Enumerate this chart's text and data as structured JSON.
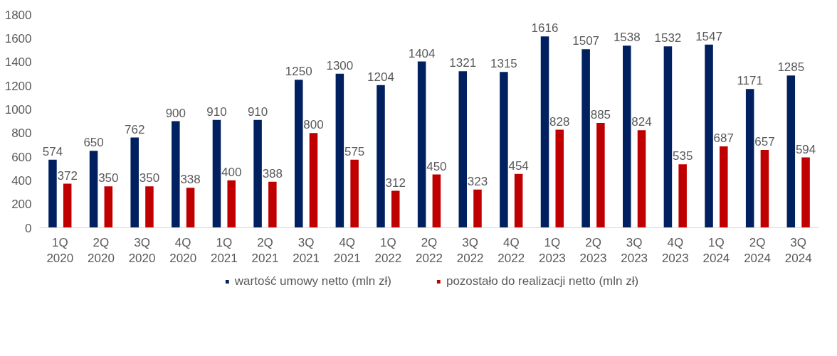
{
  "chart_data": {
    "type": "bar",
    "categories": [
      "1Q\n2020",
      "2Q\n2020",
      "3Q\n2020",
      "4Q\n2020",
      "1Q\n2021",
      "2Q\n2021",
      "3Q\n2021",
      "4Q\n2021",
      "1Q\n2022",
      "2Q\n2022",
      "3Q\n2022",
      "4Q\n2022",
      "1Q\n2023",
      "2Q\n2023",
      "3Q\n2023",
      "4Q\n2023",
      "1Q\n2024",
      "2Q\n2024",
      "3Q\n2024"
    ],
    "series": [
      {
        "name": "wartość umowy netto (mln zł)",
        "color": "#002060",
        "values": [
          574,
          650,
          762,
          900,
          910,
          910,
          1250,
          1300,
          1204,
          1404,
          1321,
          1315,
          1616,
          1507,
          1538,
          1532,
          1547,
          1171,
          1285
        ]
      },
      {
        "name": "pozostało do realizacji netto (mln zł)",
        "color": "#c00000",
        "values": [
          372,
          350,
          350,
          338,
          400,
          388,
          800,
          575,
          312,
          450,
          323,
          454,
          828,
          885,
          824,
          535,
          687,
          657,
          594
        ]
      }
    ],
    "ylim": [
      0,
      1800
    ],
    "yticks": [
      0,
      200,
      400,
      600,
      800,
      1000,
      1200,
      1400,
      1600,
      1800
    ],
    "grid": false,
    "legend": "bottom",
    "data_labels": true
  }
}
